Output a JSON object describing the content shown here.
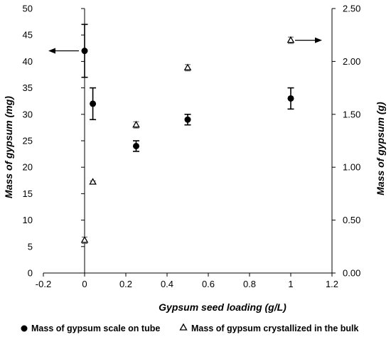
{
  "chart_data": {
    "type": "scatter",
    "title": "",
    "xlabel": "Gypsum seed loading (g/L)",
    "ylabel": "Mass of gypsum (mg)",
    "y2label": "Mass of gypsum (g)",
    "xlim": [
      -0.2,
      1.2
    ],
    "ylim": [
      0,
      50
    ],
    "y2lim": [
      0,
      2.5
    ],
    "x_ticks": [
      "-0.2",
      "0",
      "0.2",
      "0.4",
      "0.6",
      "0.8",
      "1",
      "1.2"
    ],
    "y_ticks": [
      "0",
      "5",
      "10",
      "15",
      "20",
      "25",
      "30",
      "35",
      "40",
      "45",
      "50"
    ],
    "y2_ticks": [
      "0.00",
      "0.50",
      "1.00",
      "1.50",
      "2.00",
      "2.50"
    ],
    "grid": false,
    "legend_position": "bottom",
    "series": [
      {
        "name": "Mass of gypsum scale on tube",
        "axis": "left",
        "marker": "circle",
        "x": [
          0,
          0.04,
          0.25,
          0.5,
          1.0
        ],
        "y": [
          42,
          32,
          24,
          29,
          33
        ],
        "error": [
          5,
          3,
          1,
          1,
          2
        ]
      },
      {
        "name": "Mass of gypsum crystallized in the bulk",
        "axis": "right",
        "marker": "triangle-open",
        "x": [
          0,
          0.04,
          0.25,
          0.5,
          1.0
        ],
        "y": [
          0.31,
          0.86,
          1.4,
          1.94,
          2.2
        ],
        "error": [
          0.03,
          0.01,
          0.03,
          0.03,
          0.03
        ]
      }
    ]
  }
}
